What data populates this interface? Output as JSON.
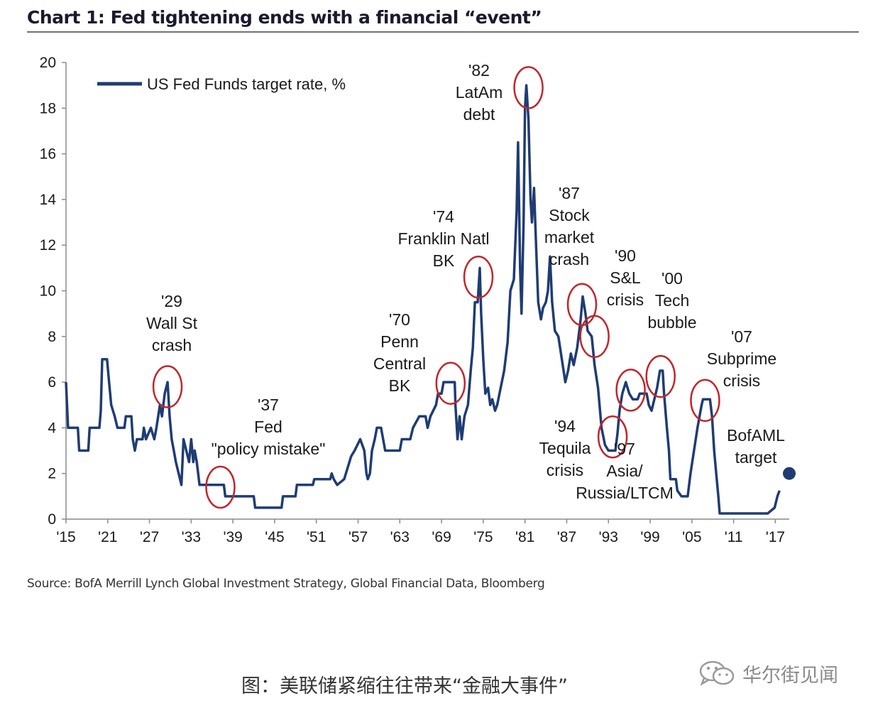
{
  "chart_data": {
    "type": "line",
    "title": "Chart 1: Fed tightening ends with a financial “event”",
    "xlabel": "",
    "ylabel": "",
    "xlim": [
      1915,
      2019
    ],
    "ylim": [
      0,
      20
    ],
    "y_ticks": [
      0,
      2,
      4,
      6,
      8,
      10,
      12,
      14,
      16,
      18,
      20
    ],
    "x_ticks": [
      {
        "year": 1915,
        "label": "'15"
      },
      {
        "year": 1921,
        "label": "'21"
      },
      {
        "year": 1927,
        "label": "'27"
      },
      {
        "year": 1933,
        "label": "'33"
      },
      {
        "year": 1939,
        "label": "'39"
      },
      {
        "year": 1945,
        "label": "'45"
      },
      {
        "year": 1951,
        "label": "'51"
      },
      {
        "year": 1957,
        "label": "'57"
      },
      {
        "year": 1963,
        "label": "'63"
      },
      {
        "year": 1969,
        "label": "'69"
      },
      {
        "year": 1975,
        "label": "'75"
      },
      {
        "year": 1981,
        "label": "'81"
      },
      {
        "year": 1987,
        "label": "'87"
      },
      {
        "year": 1993,
        "label": "'93"
      },
      {
        "year": 1999,
        "label": "'99"
      },
      {
        "year": 2005,
        "label": "'05"
      },
      {
        "year": 2011,
        "label": "'11"
      },
      {
        "year": 2017,
        "label": "'17"
      }
    ],
    "legend": {
      "position": "top-left",
      "entries": [
        "US Fed Funds target rate, %"
      ]
    },
    "series": [
      {
        "name": "US Fed Funds target rate, %",
        "color": "#1f3c74",
        "points": [
          [
            1915.0,
            6.0
          ],
          [
            1915.3,
            4.0
          ],
          [
            1916.7,
            4.0
          ],
          [
            1916.9,
            3.0
          ],
          [
            1918.2,
            3.0
          ],
          [
            1918.4,
            4.0
          ],
          [
            1919.8,
            4.0
          ],
          [
            1920.0,
            4.75
          ],
          [
            1920.2,
            7.0
          ],
          [
            1920.9,
            7.0
          ],
          [
            1921.2,
            6.0
          ],
          [
            1921.5,
            5.0
          ],
          [
            1922.0,
            4.5
          ],
          [
            1922.4,
            4.0
          ],
          [
            1923.4,
            4.0
          ],
          [
            1923.6,
            4.5
          ],
          [
            1924.4,
            4.5
          ],
          [
            1924.6,
            3.5
          ],
          [
            1924.9,
            3.0
          ],
          [
            1925.2,
            3.5
          ],
          [
            1926.0,
            3.5
          ],
          [
            1926.2,
            4.0
          ],
          [
            1926.5,
            3.5
          ],
          [
            1927.2,
            4.0
          ],
          [
            1927.7,
            3.5
          ],
          [
            1928.0,
            4.0
          ],
          [
            1928.5,
            5.0
          ],
          [
            1928.8,
            4.5
          ],
          [
            1929.2,
            5.5
          ],
          [
            1929.6,
            6.0
          ],
          [
            1929.9,
            4.5
          ],
          [
            1930.2,
            3.5
          ],
          [
            1930.5,
            3.0
          ],
          [
            1930.8,
            2.5
          ],
          [
            1931.2,
            2.0
          ],
          [
            1931.6,
            1.5
          ],
          [
            1931.9,
            3.5
          ],
          [
            1932.3,
            3.0
          ],
          [
            1932.7,
            2.5
          ],
          [
            1933.0,
            3.5
          ],
          [
            1933.3,
            2.5
          ],
          [
            1933.5,
            3.0
          ],
          [
            1933.8,
            2.5
          ],
          [
            1934.0,
            2.0
          ],
          [
            1934.2,
            1.5
          ],
          [
            1937.7,
            1.5
          ],
          [
            1937.9,
            1.0
          ],
          [
            1942.0,
            1.0
          ],
          [
            1942.2,
            0.5
          ],
          [
            1946.0,
            0.5
          ],
          [
            1946.2,
            1.0
          ],
          [
            1948.0,
            1.0
          ],
          [
            1948.2,
            1.5
          ],
          [
            1950.5,
            1.5
          ],
          [
            1950.7,
            1.75
          ],
          [
            1953.0,
            1.75
          ],
          [
            1953.2,
            2.0
          ],
          [
            1953.5,
            1.75
          ],
          [
            1954.0,
            1.5
          ],
          [
            1955.0,
            1.75
          ],
          [
            1955.5,
            2.25
          ],
          [
            1956.0,
            2.75
          ],
          [
            1956.5,
            3.0
          ],
          [
            1957.3,
            3.5
          ],
          [
            1957.9,
            3.0
          ],
          [
            1958.2,
            2.0
          ],
          [
            1958.4,
            1.75
          ],
          [
            1958.7,
            2.0
          ],
          [
            1959.0,
            3.0
          ],
          [
            1959.4,
            3.5
          ],
          [
            1959.7,
            4.0
          ],
          [
            1960.3,
            4.0
          ],
          [
            1960.6,
            3.5
          ],
          [
            1960.9,
            3.0
          ],
          [
            1963.0,
            3.0
          ],
          [
            1963.3,
            3.5
          ],
          [
            1964.5,
            3.5
          ],
          [
            1964.9,
            4.0
          ],
          [
            1965.8,
            4.5
          ],
          [
            1966.7,
            4.5
          ],
          [
            1967.0,
            4.0
          ],
          [
            1967.4,
            4.5
          ],
          [
            1968.2,
            5.0
          ],
          [
            1968.5,
            5.5
          ],
          [
            1969.0,
            5.5
          ],
          [
            1969.3,
            6.0
          ],
          [
            1970.9,
            6.0
          ],
          [
            1971.0,
            5.0
          ],
          [
            1971.3,
            3.5
          ],
          [
            1971.6,
            4.5
          ],
          [
            1971.9,
            3.5
          ],
          [
            1972.3,
            4.5
          ],
          [
            1972.8,
            5.0
          ],
          [
            1973.2,
            6.5
          ],
          [
            1973.5,
            7.5
          ],
          [
            1973.8,
            9.5
          ],
          [
            1974.2,
            9.5
          ],
          [
            1974.5,
            11.0
          ],
          [
            1974.7,
            9.0
          ],
          [
            1975.0,
            7.0
          ],
          [
            1975.3,
            5.5
          ],
          [
            1975.7,
            5.75
          ],
          [
            1976.0,
            5.0
          ],
          [
            1976.3,
            5.25
          ],
          [
            1976.7,
            4.75
          ],
          [
            1977.0,
            5.0
          ],
          [
            1977.5,
            5.75
          ],
          [
            1978.0,
            6.5
          ],
          [
            1978.5,
            7.75
          ],
          [
            1978.9,
            10.0
          ],
          [
            1979.4,
            10.5
          ],
          [
            1979.8,
            13.5
          ],
          [
            1980.0,
            16.5
          ],
          [
            1980.3,
            11.0
          ],
          [
            1980.5,
            9.0
          ],
          [
            1980.8,
            13.0
          ],
          [
            1981.0,
            18.0
          ],
          [
            1981.2,
            19.0
          ],
          [
            1981.5,
            17.5
          ],
          [
            1981.8,
            14.0
          ],
          [
            1982.0,
            13.0
          ],
          [
            1982.3,
            14.5
          ],
          [
            1982.6,
            12.0
          ],
          [
            1982.9,
            9.5
          ],
          [
            1983.3,
            8.75
          ],
          [
            1983.6,
            9.25
          ],
          [
            1984.0,
            9.5
          ],
          [
            1984.3,
            10.0
          ],
          [
            1984.6,
            11.5
          ],
          [
            1984.9,
            9.5
          ],
          [
            1985.3,
            8.25
          ],
          [
            1985.8,
            8.0
          ],
          [
            1986.3,
            7.0
          ],
          [
            1986.8,
            6.0
          ],
          [
            1987.2,
            6.5
          ],
          [
            1987.6,
            7.25
          ],
          [
            1988.0,
            6.75
          ],
          [
            1988.5,
            7.5
          ],
          [
            1989.0,
            8.75
          ],
          [
            1989.3,
            9.75
          ],
          [
            1989.7,
            9.0
          ],
          [
            1990.0,
            8.25
          ],
          [
            1990.6,
            8.0
          ],
          [
            1991.0,
            6.75
          ],
          [
            1991.5,
            5.75
          ],
          [
            1992.0,
            4.0
          ],
          [
            1992.5,
            3.25
          ],
          [
            1993.0,
            3.0
          ],
          [
            1994.0,
            3.0
          ],
          [
            1994.3,
            3.75
          ],
          [
            1994.6,
            4.75
          ],
          [
            1995.0,
            5.5
          ],
          [
            1995.5,
            6.0
          ],
          [
            1996.0,
            5.5
          ],
          [
            1996.5,
            5.25
          ],
          [
            1997.2,
            5.25
          ],
          [
            1997.5,
            5.5
          ],
          [
            1998.5,
            5.5
          ],
          [
            1998.8,
            5.0
          ],
          [
            1999.2,
            4.75
          ],
          [
            1999.6,
            5.25
          ],
          [
            2000.0,
            5.75
          ],
          [
            2000.4,
            6.5
          ],
          [
            2000.8,
            6.5
          ],
          [
            2001.0,
            5.5
          ],
          [
            2001.4,
            4.0
          ],
          [
            2001.7,
            3.0
          ],
          [
            2001.9,
            1.75
          ],
          [
            2002.7,
            1.75
          ],
          [
            2002.9,
            1.25
          ],
          [
            2003.5,
            1.0
          ],
          [
            2004.4,
            1.0
          ],
          [
            2004.8,
            2.0
          ],
          [
            2005.3,
            3.0
          ],
          [
            2005.8,
            4.0
          ],
          [
            2006.4,
            5.0
          ],
          [
            2006.6,
            5.25
          ],
          [
            2007.6,
            5.25
          ],
          [
            2007.9,
            4.5
          ],
          [
            2008.2,
            3.0
          ],
          [
            2008.5,
            2.0
          ],
          [
            2008.8,
            1.0
          ],
          [
            2009.0,
            0.25
          ],
          [
            2015.9,
            0.25
          ],
          [
            2016.9,
            0.5
          ],
          [
            2017.3,
            1.0
          ],
          [
            2017.6,
            1.25
          ]
        ]
      }
    ],
    "target_point": {
      "label": "BofAML target",
      "x": 2019.0,
      "y": 2.0,
      "color": "#1f3c74"
    },
    "annotations": [
      {
        "lines": [
          "'29",
          "Wall St",
          "crash"
        ],
        "circle": {
          "x": 1929.6,
          "y": 5.8
        }
      },
      {
        "lines": [
          "'37",
          "Fed",
          "\"policy mistake\""
        ],
        "circle": {
          "x": 1937.2,
          "y": 1.4
        }
      },
      {
        "lines": [
          "'70",
          "Penn",
          "Central",
          "BK"
        ],
        "circle": {
          "x": 1970.3,
          "y": 5.95
        }
      },
      {
        "lines": [
          "'74",
          "Franklin Natl",
          "BK"
        ],
        "circle": {
          "x": 1974.3,
          "y": 10.6
        }
      },
      {
        "lines": [
          "'82",
          "LatAm",
          "debt"
        ],
        "circle": {
          "x": 1981.5,
          "y": 18.9
        }
      },
      {
        "lines": [
          "'87",
          "Stock",
          "market",
          "crash"
        ],
        "circle": {
          "x": 1989.2,
          "y": 9.4
        }
      },
      {
        "lines": [
          "'90",
          "S&L",
          "crisis"
        ],
        "circle": {
          "x": 1991.0,
          "y": 8.0
        }
      },
      {
        "lines": [
          "'94",
          "Tequila",
          "crisis"
        ],
        "circle": {
          "x": 1993.6,
          "y": 3.6
        }
      },
      {
        "lines": [
          "'97",
          "Asia/",
          "Russia/LTCM"
        ],
        "circle": {
          "x": 1996.2,
          "y": 5.65
        }
      },
      {
        "lines": [
          "'00",
          "Tech",
          "bubble"
        ],
        "circle": {
          "x": 2000.5,
          "y": 6.25
        }
      },
      {
        "lines": [
          "'07",
          "Subprime",
          "crisis"
        ],
        "circle": {
          "x": 2006.9,
          "y": 5.2
        }
      },
      {
        "lines": [
          "BofAML",
          "target"
        ],
        "circle": null
      }
    ]
  },
  "source_note": "Source:  BofA Merrill Lynch Global Investment Strategy, Global Financial Data, Bloomberg",
  "caption": "图：美联储紧缩往往带来“金融大事件”",
  "watermark": {
    "text": "华尔街见闻",
    "icon": "wechat-icon"
  },
  "colors": {
    "line": "#1f3c74",
    "circle": "#c0262d",
    "axis": "#8a8a8a"
  }
}
